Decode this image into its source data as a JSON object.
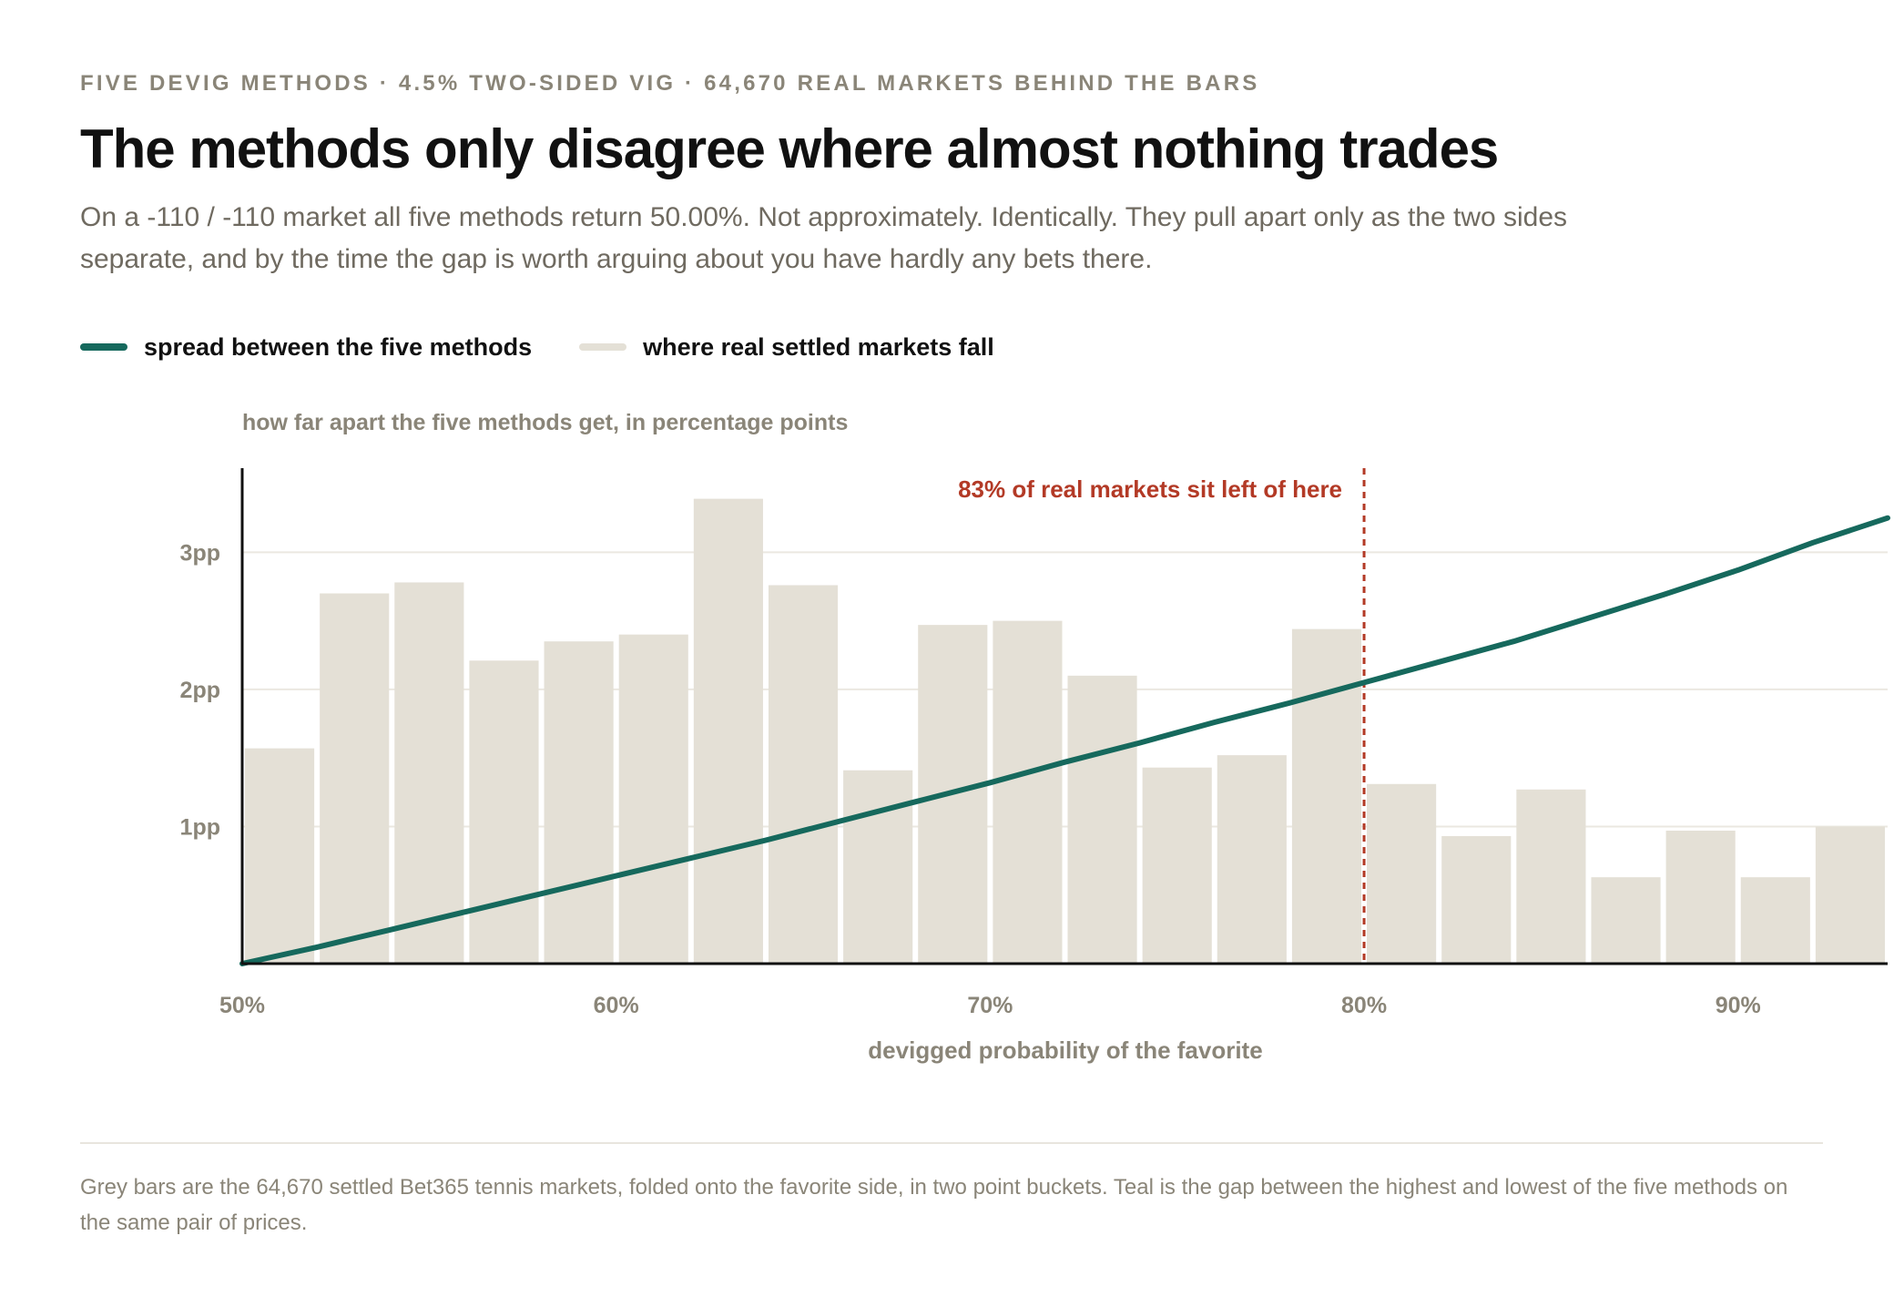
{
  "kicker": "FIVE DEVIG METHODS · 4.5% TWO-SIDED VIG · 64,670 REAL MARKETS BEHIND THE BARS",
  "headline": "The methods only disagree where almost nothing trades",
  "dek": "On a -110 / -110 market all five methods return 50.00%. Not approximately. Identically. They pull apart only as the two sides separate, and by the time the gap is worth arguing about you have hardly any bets there.",
  "legend": {
    "line_label": "spread between the five methods",
    "bars_label": "where real settled markets fall"
  },
  "footnote": "Grey bars are the 64,670 settled Bet365 tennis markets, folded onto the favorite side, in two point buckets. Teal is the gap between the highest and lowest of the five methods on the same pair of prices.",
  "colors": {
    "line": "#16695d",
    "bars": "#e4e0d6",
    "marker": "#b33a26",
    "axis": "#111111",
    "grid": "#ebe8e1",
    "muted_text": "#8a8578"
  },
  "chart_data": {
    "type": "bar",
    "title": "how far apart the five methods get, in percentage points",
    "xlabel": "devigged probability of the favorite",
    "ylabel": "how far apart the five methods get, in percentage points",
    "x_ticks": [
      {
        "value": 50,
        "label": "50%"
      },
      {
        "value": 60,
        "label": "60%"
      },
      {
        "value": 70,
        "label": "70%"
      },
      {
        "value": 80,
        "label": "80%"
      },
      {
        "value": 90,
        "label": "90%"
      }
    ],
    "y_ticks": [
      {
        "value": 1,
        "label": "1pp"
      },
      {
        "value": 2,
        "label": "2pp"
      },
      {
        "value": 3,
        "label": "3pp"
      }
    ],
    "xlim": [
      50,
      94
    ],
    "ylim": [
      0,
      3.6
    ],
    "grid": true,
    "bars": {
      "name": "where real settled markets fall",
      "bin_width": 2,
      "bin_starts": [
        50,
        52,
        54,
        56,
        58,
        60,
        62,
        64,
        66,
        68,
        70,
        72,
        74,
        76,
        78,
        80,
        82,
        84,
        86,
        88,
        90,
        92
      ],
      "heights": [
        1.57,
        2.7,
        2.78,
        2.21,
        2.35,
        2.4,
        3.39,
        2.76,
        1.41,
        2.47,
        2.5,
        2.1,
        1.43,
        1.52,
        2.44,
        1.31,
        0.93,
        1.27,
        0.63,
        0.97,
        0.63,
        1.0
      ]
    },
    "line": {
      "name": "spread between the five methods",
      "x": [
        50,
        52,
        54,
        56,
        58,
        60,
        62,
        64,
        66,
        68,
        70,
        72,
        74,
        76,
        78,
        80,
        82,
        84,
        86,
        88,
        90,
        92,
        94
      ],
      "y": [
        0.0,
        0.12,
        0.25,
        0.38,
        0.51,
        0.64,
        0.77,
        0.9,
        1.04,
        1.18,
        1.32,
        1.47,
        1.61,
        1.76,
        1.9,
        2.05,
        2.2,
        2.35,
        2.52,
        2.69,
        2.87,
        3.07,
        3.25
      ]
    },
    "annotation": {
      "x": 80,
      "label": "83% of real markets sit left of here"
    }
  }
}
